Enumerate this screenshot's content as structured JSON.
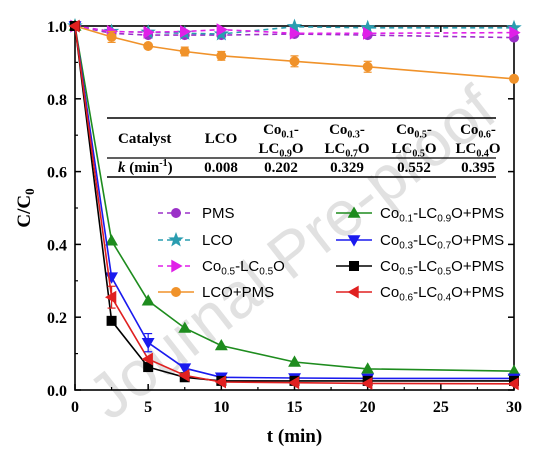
{
  "chart_data": {
    "type": "line",
    "title": "",
    "xlabel": "t (min)",
    "ylabel": "C/C",
    "ylabel_sub": "0",
    "xlim": [
      0,
      30
    ],
    "ylim": [
      0,
      1.0
    ],
    "xticks": [
      0,
      5,
      10,
      15,
      20,
      25,
      30
    ],
    "yticks": [
      0.0,
      0.2,
      0.4,
      0.6,
      0.8,
      1.0
    ],
    "grid": false,
    "legend_position": "bottom",
    "series": [
      {
        "name": "PMS",
        "legend_order": 0,
        "color": "#9b30c8",
        "marker": "circle",
        "dash": true,
        "x": [
          0,
          2.5,
          5,
          7.5,
          10,
          15,
          20,
          30
        ],
        "y": [
          1.0,
          0.98,
          0.975,
          0.975,
          0.975,
          0.978,
          0.975,
          0.968
        ]
      },
      {
        "name": "LCO",
        "legend_order": 1,
        "color": "#2a9db0",
        "marker": "star",
        "dash": true,
        "x": [
          0,
          2.5,
          5,
          7.5,
          10,
          15,
          20,
          30
        ],
        "y": [
          1.0,
          0.985,
          0.983,
          0.98,
          0.978,
          0.998,
          0.995,
          0.995
        ]
      },
      {
        "name": "Co0.5-LC0.5O",
        "legend_order": 2,
        "color": "#e020e8",
        "marker": "triangle-right",
        "dash": true,
        "x": [
          0,
          2.5,
          5,
          7.5,
          10,
          15,
          20,
          30
        ],
        "y": [
          1.0,
          0.985,
          0.983,
          0.985,
          0.99,
          0.98,
          0.98,
          0.982
        ]
      },
      {
        "name": "LCO+PMS",
        "legend_order": 3,
        "color": "#f0922a",
        "marker": "circle",
        "dash": false,
        "x": [
          0,
          2.5,
          5,
          7.5,
          10,
          15,
          20,
          30
        ],
        "y": [
          1.0,
          0.97,
          0.945,
          0.93,
          0.918,
          0.903,
          0.888,
          0.855
        ]
      },
      {
        "name": "Co0.1-LC0.9O+PMS",
        "legend_order": 4,
        "color": "#1e8c1e",
        "marker": "triangle-up",
        "dash": false,
        "x": [
          0,
          2.5,
          5,
          7.5,
          10,
          15,
          20,
          30
        ],
        "y": [
          1.0,
          0.41,
          0.245,
          0.17,
          0.122,
          0.077,
          0.058,
          0.052
        ]
      },
      {
        "name": "Co0.3-LC0.7O+PMS",
        "legend_order": 5,
        "color": "#1a1aee",
        "marker": "triangle-down",
        "dash": false,
        "x": [
          0,
          2.5,
          5,
          7.5,
          10,
          15,
          20,
          30
        ],
        "y": [
          1.0,
          0.31,
          0.13,
          0.06,
          0.035,
          0.033,
          0.032,
          0.032
        ]
      },
      {
        "name": "Co0.5-LC0.5O+PMS",
        "legend_order": 6,
        "color": "#000000",
        "marker": "square",
        "dash": false,
        "x": [
          0,
          2.5,
          5,
          7.5,
          10,
          15,
          20,
          30
        ],
        "y": [
          1.0,
          0.19,
          0.063,
          0.035,
          0.025,
          0.025,
          0.025,
          0.025
        ]
      },
      {
        "name": "Co0.6-LC0.4O+PMS",
        "legend_order": 7,
        "color": "#e02020",
        "marker": "triangle-left",
        "dash": false,
        "x": [
          0,
          2.5,
          5,
          7.5,
          10,
          15,
          20,
          30
        ],
        "y": [
          1.0,
          0.255,
          0.085,
          0.04,
          0.022,
          0.02,
          0.018,
          0.017
        ]
      }
    ],
    "error_bars": [
      {
        "series": "LCO+PMS",
        "x": [
          2.5,
          7.5,
          10,
          15,
          20
        ],
        "err": [
          0.015,
          0.012,
          0.012,
          0.015,
          0.015
        ]
      },
      {
        "series": "Co0.3-LC0.7O+PMS",
        "x": [
          5
        ],
        "err": [
          0.025
        ]
      },
      {
        "series": "Co0.6-LC0.4O+PMS",
        "x": [
          2.5
        ],
        "err": [
          0.03
        ]
      }
    ],
    "table": {
      "header_label": "Catalyst",
      "row_label": "k",
      "row_unit": "(min",
      "row_unit_sup": "-1",
      "row_unit_close": ")",
      "columns": [
        {
          "l1": [
            [
              "Co",
              ""
            ],
            [
              "0.1",
              "sub"
            ],
            [
              "-",
              ""
            ]
          ],
          "l2": [
            [
              "LC",
              ""
            ],
            [
              "0.9",
              "sub"
            ],
            [
              "O",
              ""
            ]
          ],
          "value": "0.202"
        },
        {
          "l1": [
            [
              "Co",
              ""
            ],
            [
              "0.3",
              "sub"
            ],
            [
              "-",
              ""
            ]
          ],
          "l2": [
            [
              "LC",
              ""
            ],
            [
              "0.7",
              "sub"
            ],
            [
              "O",
              ""
            ]
          ],
          "value": "0.329"
        },
        {
          "l1": [
            [
              "Co",
              ""
            ],
            [
              "0.5",
              "sub"
            ],
            [
              "-",
              ""
            ]
          ],
          "l2": [
            [
              "LC",
              ""
            ],
            [
              "0.5",
              "sub"
            ],
            [
              "O",
              ""
            ]
          ],
          "value": "0.552"
        },
        {
          "l1": [
            [
              "Co",
              ""
            ],
            [
              "0.6",
              "sub"
            ],
            [
              "-",
              ""
            ]
          ],
          "l2": [
            [
              "LC",
              ""
            ],
            [
              "0.4",
              "sub"
            ],
            [
              "O",
              ""
            ]
          ],
          "value": "0.395"
        }
      ],
      "lco_label": "LCO",
      "lco_value": "0.008"
    },
    "legend_labels": [
      [
        [
          "PMS",
          ""
        ]
      ],
      [
        [
          "LCO",
          ""
        ]
      ],
      [
        [
          "Co",
          ""
        ],
        [
          "0.5",
          "sub"
        ],
        [
          "-LC",
          ""
        ],
        [
          "0.5",
          "sub"
        ],
        [
          "O",
          ""
        ]
      ],
      [
        [
          "LCO+PMS",
          ""
        ]
      ],
      [
        [
          "Co",
          ""
        ],
        [
          "0.1",
          "sub"
        ],
        [
          "-LC",
          ""
        ],
        [
          "0.9",
          "sub"
        ],
        [
          "O+PMS",
          ""
        ]
      ],
      [
        [
          "Co",
          ""
        ],
        [
          "0.3",
          "sub"
        ],
        [
          "-LC",
          ""
        ],
        [
          "0.7",
          "sub"
        ],
        [
          "O+PMS",
          ""
        ]
      ],
      [
        [
          "Co",
          ""
        ],
        [
          "0.5",
          "sub"
        ],
        [
          "-LC",
          ""
        ],
        [
          "0.5",
          "sub"
        ],
        [
          "O+PMS",
          ""
        ]
      ],
      [
        [
          "Co",
          ""
        ],
        [
          "0.6",
          "sub"
        ],
        [
          "-LC",
          ""
        ],
        [
          "0.4",
          "sub"
        ],
        [
          "O+PMS",
          ""
        ]
      ]
    ]
  },
  "watermark": "Journal Pre-proof"
}
